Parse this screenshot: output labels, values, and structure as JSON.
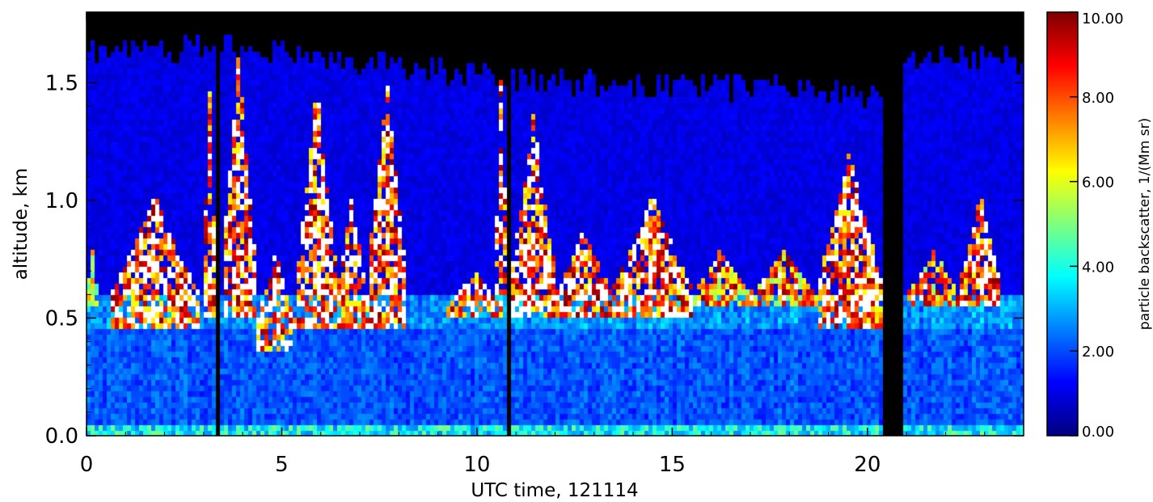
{
  "chart_data": {
    "type": "heatmap",
    "xlabel": "UTC time, 121114",
    "ylabel": "altitude, km",
    "xlim": [
      0,
      24
    ],
    "ylim": [
      0,
      1.8
    ],
    "x_ticks": [
      {
        "value": 0,
        "label": "0"
      },
      {
        "value": 5,
        "label": "5"
      },
      {
        "value": 10,
        "label": "10"
      },
      {
        "value": 15,
        "label": "15"
      },
      {
        "value": 20,
        "label": "20"
      }
    ],
    "y_ticks": [
      {
        "value": 0.0,
        "label": "0.0"
      },
      {
        "value": 0.5,
        "label": "0.5"
      },
      {
        "value": 1.0,
        "label": "1.0"
      },
      {
        "value": 1.5,
        "label": "1.5"
      }
    ],
    "colorbar": {
      "label": "particle backscatter, 1/(Mm sr)",
      "range": [
        0,
        10
      ],
      "colormap": "jet",
      "ticks": [
        {
          "value": 0,
          "label": "0.00"
        },
        {
          "value": 2,
          "label": "2.00"
        },
        {
          "value": 4,
          "label": "4.00"
        },
        {
          "value": 6,
          "label": "6.00"
        },
        {
          "value": 8,
          "label": "8.00"
        },
        {
          "value": 10,
          "label": "10.00"
        }
      ]
    },
    "no_data_color": "#000000",
    "saturated_color": "#ffffff",
    "data_gaps": [
      [
        3.35,
        3.45
      ],
      [
        10.75,
        10.85
      ],
      [
        20.4,
        20.95
      ]
    ],
    "data_top_altitude": [
      [
        0,
        1.62
      ],
      [
        4,
        1.65
      ],
      [
        9,
        1.55
      ],
      [
        12,
        1.5
      ],
      [
        17,
        1.48
      ],
      [
        20.4,
        1.45
      ],
      [
        21,
        1.6
      ],
      [
        24,
        1.6
      ]
    ],
    "cloud_layers": [
      {
        "t0": 0.0,
        "t1": 0.3,
        "base": 0.55,
        "top": 0.8,
        "peak": 7
      },
      {
        "t0": 0.6,
        "t1": 2.9,
        "base": 0.45,
        "top": 1.05,
        "peak": 11
      },
      {
        "t0": 3.0,
        "t1": 3.3,
        "base": 0.5,
        "top": 1.55,
        "peak": 11
      },
      {
        "t0": 3.5,
        "t1": 4.3,
        "base": 0.5,
        "top": 1.7,
        "peak": 11
      },
      {
        "t0": 4.3,
        "t1": 5.4,
        "base": 0.35,
        "top": 0.8,
        "peak": 11
      },
      {
        "t0": 5.4,
        "t1": 6.4,
        "base": 0.45,
        "top": 1.55,
        "peak": 11
      },
      {
        "t0": 6.4,
        "t1": 7.2,
        "base": 0.45,
        "top": 1.05,
        "peak": 11
      },
      {
        "t0": 7.2,
        "t1": 8.2,
        "base": 0.45,
        "top": 1.55,
        "peak": 11
      },
      {
        "t0": 9.2,
        "t1": 10.7,
        "base": 0.5,
        "top": 0.7,
        "peak": 11
      },
      {
        "t0": 10.5,
        "t1": 10.75,
        "base": 0.6,
        "top": 1.7,
        "peak": 11
      },
      {
        "t0": 10.9,
        "t1": 12.0,
        "base": 0.5,
        "top": 1.4,
        "peak": 11
      },
      {
        "t0": 12.0,
        "t1": 13.5,
        "base": 0.5,
        "top": 0.9,
        "peak": 11
      },
      {
        "t0": 13.5,
        "t1": 15.5,
        "base": 0.5,
        "top": 1.05,
        "peak": 11
      },
      {
        "t0": 15.5,
        "t1": 17.0,
        "base": 0.55,
        "top": 0.8,
        "peak": 9
      },
      {
        "t0": 17.0,
        "t1": 18.7,
        "base": 0.55,
        "top": 0.8,
        "peak": 9
      },
      {
        "t0": 18.7,
        "t1": 20.4,
        "base": 0.45,
        "top": 1.25,
        "peak": 11
      },
      {
        "t0": 21.0,
        "t1": 22.4,
        "base": 0.55,
        "top": 0.8,
        "peak": 9
      },
      {
        "t0": 22.4,
        "t1": 23.4,
        "base": 0.55,
        "top": 1.05,
        "peak": 11
      }
    ]
  }
}
